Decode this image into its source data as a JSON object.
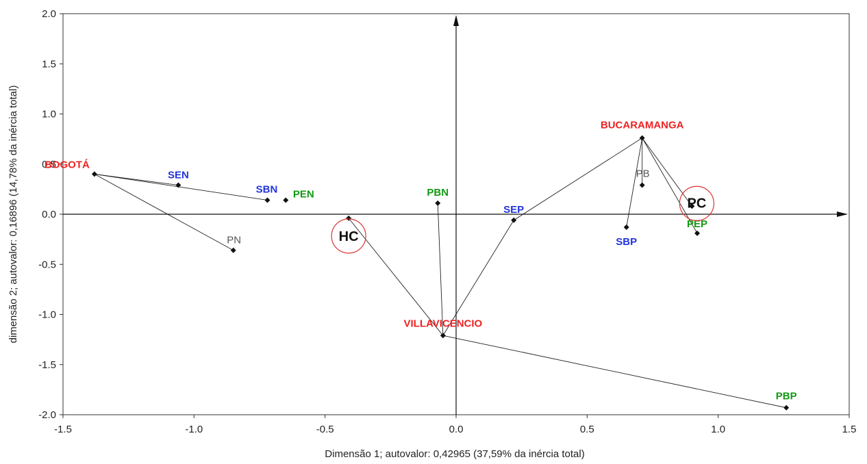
{
  "chart_data": {
    "type": "scatter",
    "xlabel": "Dimensão 1; autovalor: 0,42965 (37,59% da inércia total)",
    "ylabel": "dimensão 2; autovalor: 0,16896 (14,78% da inércia total)",
    "xlim": [
      -1.5,
      1.5
    ],
    "ylim": [
      -2.0,
      2.0
    ],
    "xticks": [
      "-1.5",
      "-1.0",
      "-0.5",
      "0.0",
      "0.5",
      "1.0",
      "1.5"
    ],
    "yticks": [
      "2.0",
      "1.5",
      "1.0",
      "0.5",
      "0.0",
      "-0.5",
      "-1.0",
      "-1.5",
      "-2.0"
    ],
    "grid": false,
    "colors": {
      "city": "#ee2222",
      "blue": "#2233dd",
      "green": "#119911",
      "gray": "#555555",
      "black": "#111111",
      "circle": "#dd3333"
    },
    "points": [
      {
        "id": "bogota",
        "label": "BOGOTÁ",
        "x": -1.38,
        "y": 0.4,
        "group": "city"
      },
      {
        "id": "bucaramanga",
        "label": "BUCARAMANGA",
        "x": 0.71,
        "y": 0.76,
        "group": "city"
      },
      {
        "id": "villavicencio",
        "label": "VILLAVICENCIO",
        "x": -0.05,
        "y": -1.21,
        "group": "city"
      },
      {
        "id": "sen",
        "label": "SEN",
        "x": -1.06,
        "y": 0.29,
        "group": "blue"
      },
      {
        "id": "sbn",
        "label": "SBN",
        "x": -0.72,
        "y": 0.14,
        "group": "blue"
      },
      {
        "id": "sep",
        "label": "SEP",
        "x": 0.22,
        "y": -0.06,
        "group": "blue"
      },
      {
        "id": "sbp",
        "label": "SBP",
        "x": 0.65,
        "y": -0.13,
        "group": "blue"
      },
      {
        "id": "pen",
        "label": "PEN",
        "x": -0.65,
        "y": 0.14,
        "group": "green"
      },
      {
        "id": "pbn",
        "label": "PBN",
        "x": -0.07,
        "y": 0.11,
        "group": "green"
      },
      {
        "id": "pep",
        "label": "PEP",
        "x": 0.92,
        "y": -0.19,
        "group": "green"
      },
      {
        "id": "pbp",
        "label": "PBP",
        "x": 1.26,
        "y": -1.93,
        "group": "green"
      },
      {
        "id": "pn",
        "label": "PN",
        "x": -0.85,
        "y": -0.36,
        "group": "gray"
      },
      {
        "id": "pb",
        "label": "PB",
        "x": 0.71,
        "y": 0.29,
        "group": "gray"
      },
      {
        "id": "hc",
        "label": "HC",
        "x": -0.41,
        "y": -0.04,
        "group": "black",
        "circled": true
      },
      {
        "id": "pc",
        "label": "PC",
        "x": 0.9,
        "y": 0.08,
        "group": "black",
        "circled": true
      }
    ],
    "links": [
      [
        "bogota",
        "sen"
      ],
      [
        "bogota",
        "sbn"
      ],
      [
        "bogota",
        "pn"
      ],
      [
        "bucaramanga",
        "sep"
      ],
      [
        "bucaramanga",
        "pb"
      ],
      [
        "bucaramanga",
        "sbp"
      ],
      [
        "bucaramanga",
        "pep"
      ],
      [
        "bucaramanga",
        "pc"
      ],
      [
        "villavicencio",
        "hc"
      ],
      [
        "villavicencio",
        "pbn"
      ],
      [
        "villavicencio",
        "sep"
      ],
      [
        "villavicencio",
        "pbp"
      ]
    ]
  }
}
